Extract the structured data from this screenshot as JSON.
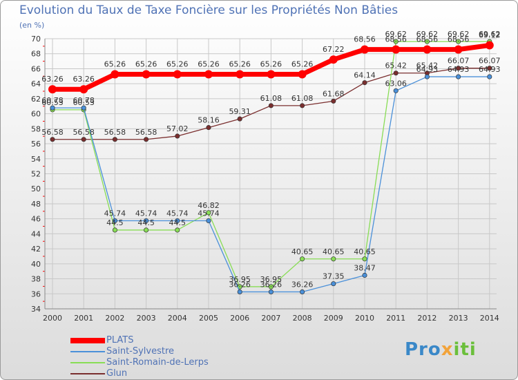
{
  "title": "Evolution du Taux de Taxe Foncière sur les Propriétés Non Bâties",
  "unit": "(en %)",
  "logo": {
    "part1": "Pro",
    "part2": "x",
    "part3": "iti"
  },
  "colors": {
    "PLATS": "#ff0000",
    "Saint-Sylvestre": "#4a90d9",
    "Saint-Romain-de-Lerps": "#88dd55",
    "Glun": "#7a2e2e",
    "grid": "#c8c8c8",
    "axis_text": "#333333",
    "tick_red": "#ff0000"
  },
  "chart_data": {
    "type": "line",
    "title": "Evolution du Taux de Taxe Foncière sur les Propriétés Non Bâties",
    "ylabel": "(en %)",
    "xlabel": "",
    "ylim": [
      34,
      70
    ],
    "ytick_step": 2,
    "grid": true,
    "legend_position": "bottom-left",
    "categories": [
      "2000",
      "2001",
      "2002",
      "2003",
      "2004",
      "2005",
      "2006",
      "2007",
      "2008",
      "2009",
      "2010",
      "2011",
      "2012",
      "2013",
      "2014"
    ],
    "series": [
      {
        "name": "PLATS",
        "values": [
          63.26,
          63.26,
          65.26,
          65.26,
          65.26,
          65.26,
          65.26,
          65.26,
          65.26,
          67.22,
          68.56,
          68.56,
          68.56,
          68.56,
          69.12
        ]
      },
      {
        "name": "Saint-Sylvestre",
        "values": [
          60.78,
          60.78,
          45.74,
          45.74,
          45.74,
          45.74,
          36.26,
          36.26,
          36.26,
          37.35,
          38.47,
          63.06,
          64.93,
          64.93,
          64.93
        ]
      },
      {
        "name": "Saint-Romain-de-Lerps",
        "values": [
          60.53,
          60.53,
          44.5,
          44.5,
          44.5,
          46.82,
          36.95,
          36.95,
          40.65,
          40.65,
          40.65,
          69.62,
          69.62,
          69.62,
          69.62
        ]
      },
      {
        "name": "Glun",
        "values": [
          56.58,
          56.58,
          56.58,
          56.58,
          57.02,
          58.16,
          59.31,
          61.08,
          61.08,
          61.68,
          64.14,
          65.42,
          65.42,
          66.07,
          66.07
        ]
      }
    ]
  }
}
